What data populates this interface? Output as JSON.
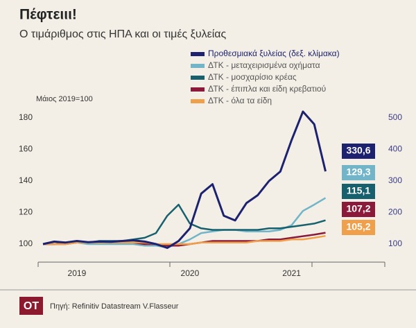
{
  "chart_data": {
    "type": "line",
    "title": "Πέφτειιι!",
    "subtitle": "Ο τιμάριθμος στις ΗΠΑ και οι τιμές ξυλείας",
    "y_note": "Μάιος 2019=100",
    "source": "Πηγή: Refinitiv Datastream V.Flasseur",
    "logo": "OT",
    "categories": [
      null,
      null,
      null,
      "2019",
      null,
      null,
      null,
      null,
      null,
      null,
      null,
      null,
      null,
      "2020",
      null,
      null,
      null,
      null,
      null,
      null,
      null,
      null,
      "2021",
      null,
      null,
      null
    ],
    "ylim": [
      95,
      192
    ],
    "yticks": [
      100,
      120,
      140,
      160,
      180
    ],
    "y2lim": [
      75,
      560
    ],
    "y2ticks": [
      100,
      200,
      300,
      400,
      500
    ],
    "series": [
      {
        "name": "Προθεσμιακά ξυλείας (δεξ. κλίμακα)",
        "color": "#1d2270",
        "axis": "y2",
        "values": [
          100,
          108,
          105,
          110,
          106,
          108,
          107,
          110,
          112,
          108,
          100,
          88,
          110,
          150,
          260,
          290,
          190,
          175,
          230,
          255,
          300,
          330,
          430,
          520,
          480,
          330.6
        ],
        "value_labels": [
          null,
          null,
          null,
          null,
          null,
          null,
          null,
          null,
          null,
          null,
          null,
          null,
          null,
          null,
          null,
          null,
          null,
          null,
          null,
          null,
          null,
          null,
          null,
          null,
          null,
          "330,6"
        ]
      },
      {
        "name": "ΔΤΚ - μεταχειρισμένα οχήματα",
        "color": "#72b4c8",
        "values": [
          100,
          100,
          101,
          101,
          100,
          100,
          100,
          100,
          100,
          99,
          99,
          98,
          100,
          103,
          107,
          108,
          109,
          109,
          108,
          108,
          108,
          109,
          112,
          121,
          125,
          129.3
        ],
        "value_labels": [
          null,
          null,
          null,
          null,
          null,
          null,
          null,
          null,
          null,
          null,
          null,
          null,
          null,
          null,
          null,
          null,
          null,
          null,
          null,
          null,
          null,
          null,
          null,
          null,
          null,
          "129,3"
        ]
      },
      {
        "name": "ΔΤΚ - μοσχαρίσιο κρέας",
        "color": "#17606e",
        "values": [
          100,
          100,
          101,
          101,
          101,
          102,
          102,
          102,
          103,
          104,
          107,
          118,
          125,
          113,
          110,
          109,
          109,
          109,
          109,
          109,
          110,
          110,
          111,
          112,
          113,
          115.1
        ],
        "value_labels": [
          null,
          null,
          null,
          null,
          null,
          null,
          null,
          null,
          null,
          null,
          null,
          null,
          null,
          null,
          null,
          null,
          null,
          null,
          null,
          null,
          null,
          null,
          null,
          null,
          null,
          "115,1"
        ]
      },
      {
        "name": "ΔΤΚ - έπιπλα και είδη κρεβατιού",
        "color": "#8b1a3a",
        "values": [
          100,
          100,
          100,
          101,
          101,
          101,
          101,
          101,
          101,
          100,
          100,
          99,
          99,
          100,
          101,
          102,
          102,
          102,
          102,
          102,
          103,
          103,
          104,
          105,
          106,
          107.2
        ],
        "value_labels": [
          null,
          null,
          null,
          null,
          null,
          null,
          null,
          null,
          null,
          null,
          null,
          null,
          null,
          null,
          null,
          null,
          null,
          null,
          null,
          null,
          null,
          null,
          null,
          null,
          null,
          "107,2"
        ]
      },
      {
        "name": "ΔΤΚ - όλα τα είδη",
        "color": "#f0a04b",
        "values": [
          100,
          100,
          100,
          101,
          101,
          101,
          101,
          101,
          101,
          101,
          100,
          100,
          100,
          100,
          101,
          101,
          101,
          101,
          101,
          102,
          102,
          102,
          103,
          103,
          104,
          105.2
        ],
        "value_labels": [
          null,
          null,
          null,
          null,
          null,
          null,
          null,
          null,
          null,
          null,
          null,
          null,
          null,
          null,
          null,
          null,
          null,
          null,
          null,
          null,
          null,
          null,
          null,
          null,
          null,
          "105,2"
        ]
      }
    ]
  }
}
